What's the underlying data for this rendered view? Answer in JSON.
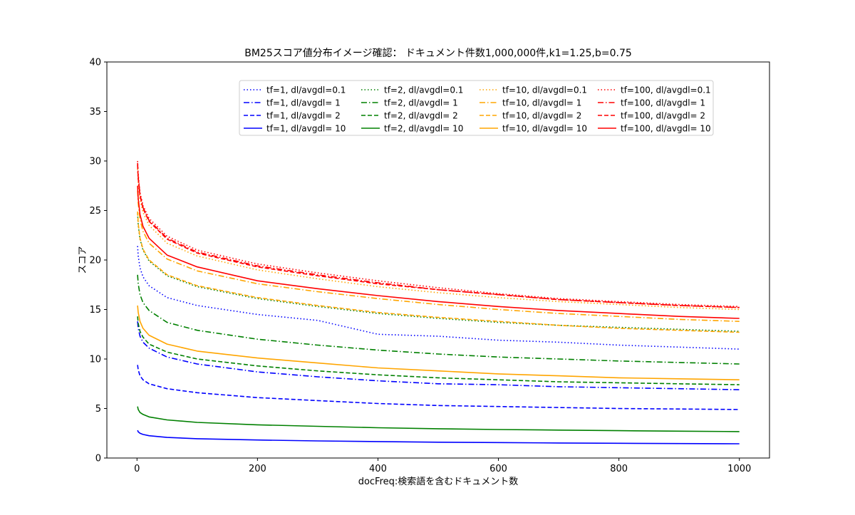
{
  "chart_data": {
    "type": "line",
    "title": "BM25スコア値分布イメージ確認： ドキュメント件数1,000,000件,k1=1.25,b=0.75",
    "xlabel": "docFreq:検索語を含むドキュメント数",
    "ylabel": "スコア",
    "xlim": [
      -50,
      1050
    ],
    "ylim": [
      0,
      40
    ],
    "xticks": [
      0,
      200,
      400,
      600,
      800,
      1000
    ],
    "yticks": [
      0,
      5,
      10,
      15,
      20,
      25,
      30,
      35,
      40
    ],
    "grid": false,
    "legend_position": "top-right",
    "legend_columns": 4,
    "x": [
      1,
      2,
      5,
      10,
      20,
      50,
      100,
      200,
      300,
      400,
      500,
      600,
      700,
      800,
      900,
      1000
    ],
    "series": [
      {
        "name": "tf=1, dl/avgdl=0.1",
        "color": "#0000ff",
        "style": "dotted",
        "values": [
          21.4,
          20.4,
          19.2,
          18.3,
          17.4,
          16.2,
          15.4,
          14.5,
          13.9,
          12.5,
          12.3,
          11.9,
          11.7,
          11.4,
          11.2,
          11.0
        ]
      },
      {
        "name": "tf=1, dl/avgdl=  1",
        "color": "#0000ff",
        "style": "dashdot",
        "values": [
          13.8,
          13.1,
          12.3,
          11.7,
          11.1,
          10.2,
          9.5,
          8.7,
          8.2,
          7.8,
          7.5,
          7.4,
          7.2,
          7.1,
          7.0,
          6.9
        ]
      },
      {
        "name": "tf=1, dl/avgdl=  2",
        "color": "#0000ff",
        "style": "dashed",
        "values": [
          9.4,
          8.9,
          8.3,
          7.9,
          7.5,
          7.0,
          6.6,
          6.1,
          5.8,
          5.5,
          5.3,
          5.2,
          5.1,
          5.0,
          4.95,
          4.9
        ]
      },
      {
        "name": "tf=1, dl/avgdl= 10",
        "color": "#0000ff",
        "style": "solid",
        "values": [
          2.8,
          2.65,
          2.5,
          2.38,
          2.25,
          2.08,
          1.95,
          1.82,
          1.73,
          1.66,
          1.6,
          1.56,
          1.52,
          1.49,
          1.46,
          1.44
        ]
      },
      {
        "name": "tf=2, dl/avgdl=0.1",
        "color": "#008000",
        "style": "dotted",
        "values": [
          24.7,
          23.5,
          22.1,
          21.0,
          19.9,
          18.4,
          17.3,
          16.1,
          15.3,
          14.6,
          14.1,
          13.7,
          13.4,
          13.2,
          13.0,
          12.8
        ]
      },
      {
        "name": "tf=2, dl/avgdl=  1",
        "color": "#008000",
        "style": "dashdot",
        "values": [
          18.5,
          17.6,
          16.5,
          15.7,
          14.9,
          13.7,
          12.9,
          12.0,
          11.4,
          10.9,
          10.5,
          10.2,
          10.0,
          9.8,
          9.65,
          9.5
        ]
      },
      {
        "name": "tf=2, dl/avgdl=  2",
        "color": "#008000",
        "style": "dashed",
        "values": [
          14.3,
          13.6,
          12.8,
          12.2,
          11.5,
          10.7,
          10.0,
          9.3,
          8.8,
          8.4,
          8.1,
          7.9,
          7.7,
          7.6,
          7.5,
          7.4
        ]
      },
      {
        "name": "tf=2, dl/avgdl= 10",
        "color": "#008000",
        "style": "solid",
        "values": [
          5.2,
          4.9,
          4.6,
          4.4,
          4.15,
          3.85,
          3.6,
          3.35,
          3.2,
          3.06,
          2.96,
          2.88,
          2.82,
          2.76,
          2.71,
          2.67
        ]
      },
      {
        "name": "tf=10, dl/avgdl=0.1",
        "color": "#ffa500",
        "style": "dotted",
        "values": [
          29.2,
          27.8,
          26.1,
          24.8,
          23.5,
          21.7,
          20.4,
          19.0,
          18.1,
          17.3,
          16.7,
          16.2,
          15.8,
          15.5,
          15.2,
          15.0
        ]
      },
      {
        "name": "tf=10, dl/avgdl=  1",
        "color": "#ffa500",
        "style": "dashdot",
        "values": [
          27.0,
          25.7,
          24.1,
          22.9,
          21.7,
          20.1,
          18.9,
          17.6,
          16.8,
          16.1,
          15.5,
          15.0,
          14.6,
          14.3,
          14.0,
          13.8
        ]
      },
      {
        "name": "tf=10, dl/avgdl=  2",
        "color": "#ffa500",
        "style": "dashed",
        "values": [
          24.9,
          23.7,
          22.2,
          21.1,
          20.0,
          18.5,
          17.4,
          16.2,
          15.4,
          14.7,
          14.2,
          13.8,
          13.4,
          13.1,
          12.9,
          12.7
        ]
      },
      {
        "name": "tf=10, dl/avgdl= 10",
        "color": "#ffa500",
        "style": "solid",
        "values": [
          15.4,
          14.7,
          13.8,
          13.1,
          12.4,
          11.5,
          10.8,
          10.1,
          9.6,
          9.1,
          8.8,
          8.5,
          8.3,
          8.1,
          8.0,
          7.9
        ]
      },
      {
        "name": "tf=100, dl/avgdl=0.1",
        "color": "#ff0000",
        "style": "dotted",
        "values": [
          30.0,
          28.6,
          26.8,
          25.5,
          24.2,
          22.4,
          21.0,
          19.6,
          18.7,
          17.9,
          17.2,
          16.6,
          16.1,
          15.8,
          15.5,
          15.3
        ]
      },
      {
        "name": "tf=100, dl/avgdl=  1",
        "color": "#ff0000",
        "style": "dashdot",
        "values": [
          29.8,
          28.4,
          26.6,
          25.3,
          24.0,
          22.2,
          20.8,
          19.4,
          18.5,
          17.7,
          17.0,
          16.5,
          16.0,
          15.7,
          15.4,
          15.2
        ]
      },
      {
        "name": "tf=100, dl/avgdl=  2",
        "color": "#ff0000",
        "style": "dashed",
        "values": [
          29.6,
          28.2,
          26.5,
          25.2,
          23.9,
          22.1,
          20.7,
          19.3,
          18.4,
          17.6,
          17.0,
          16.5,
          16.0,
          15.7,
          15.4,
          15.2
        ]
      },
      {
        "name": "tf=100, dl/avgdl= 10",
        "color": "#ff0000",
        "style": "solid",
        "values": [
          27.5,
          26.2,
          24.6,
          23.4,
          22.2,
          20.5,
          19.3,
          17.9,
          17.1,
          16.4,
          15.8,
          15.3,
          14.9,
          14.6,
          14.3,
          14.1
        ]
      }
    ]
  }
}
